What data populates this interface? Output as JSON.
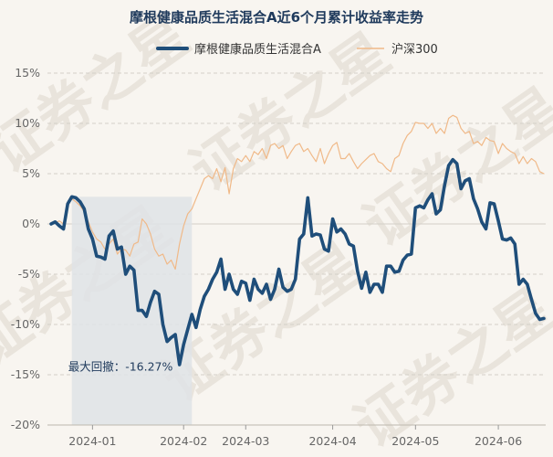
{
  "chart_data": {
    "type": "line",
    "title": "摩根健康品质生活混合A近6个月累计收益率走势",
    "xlabel": "",
    "ylabel": "",
    "x_ticks": [
      "2024-01",
      "2024-02",
      "2024-03",
      "2024-04",
      "2024-05",
      "2024-06"
    ],
    "y_ticks": [
      "15%",
      "10%",
      "5%",
      "0%",
      "-5%",
      "-10%",
      "-15%",
      "-20%"
    ],
    "ylim": [
      -20,
      15
    ],
    "grid": "horizontal dashed",
    "legend_position": "top-center",
    "x": [
      "2023-12-18",
      "2023-12-19",
      "2023-12-20",
      "2023-12-21",
      "2023-12-22",
      "2023-12-25",
      "2023-12-26",
      "2023-12-27",
      "2023-12-28",
      "2023-12-29",
      "2024-01-02",
      "2024-01-03",
      "2024-01-04",
      "2024-01-05",
      "2024-01-08",
      "2024-01-09",
      "2024-01-10",
      "2024-01-11",
      "2024-01-12",
      "2024-01-15",
      "2024-01-16",
      "2024-01-17",
      "2024-01-18",
      "2024-01-19",
      "2024-01-22",
      "2024-01-23",
      "2024-01-24",
      "2024-01-25",
      "2024-01-26",
      "2024-01-29",
      "2024-01-30",
      "2024-01-31",
      "2024-02-01",
      "2024-02-02",
      "2024-02-05",
      "2024-02-06",
      "2024-02-07",
      "2024-02-08",
      "2024-02-19",
      "2024-02-20",
      "2024-02-21",
      "2024-02-22",
      "2024-02-23",
      "2024-02-26",
      "2024-02-27",
      "2024-02-28",
      "2024-02-29",
      "2024-03-01",
      "2024-03-04",
      "2024-03-05",
      "2024-03-06",
      "2024-03-07",
      "2024-03-08",
      "2024-03-11",
      "2024-03-12",
      "2024-03-13",
      "2024-03-14",
      "2024-03-15",
      "2024-03-18",
      "2024-03-19",
      "2024-03-20",
      "2024-03-21",
      "2024-03-22",
      "2024-03-25",
      "2024-03-26",
      "2024-03-27",
      "2024-03-28",
      "2024-03-29",
      "2024-04-01",
      "2024-04-02",
      "2024-04-03",
      "2024-04-08",
      "2024-04-09",
      "2024-04-10",
      "2024-04-11",
      "2024-04-12",
      "2024-04-15",
      "2024-04-16",
      "2024-04-17",
      "2024-04-18",
      "2024-04-19",
      "2024-04-22",
      "2024-04-23",
      "2024-04-24",
      "2024-04-25",
      "2024-04-26",
      "2024-04-29",
      "2024-04-30",
      "2024-05-06",
      "2024-05-07",
      "2024-05-08",
      "2024-05-09",
      "2024-05-10",
      "2024-05-13",
      "2024-05-14",
      "2024-05-15",
      "2024-05-16",
      "2024-05-17",
      "2024-05-20",
      "2024-05-21",
      "2024-05-22",
      "2024-05-23",
      "2024-05-24",
      "2024-05-27",
      "2024-05-28",
      "2024-05-29",
      "2024-05-30",
      "2024-05-31",
      "2024-06-03",
      "2024-06-04",
      "2024-06-05",
      "2024-06-06",
      "2024-06-07",
      "2024-06-11",
      "2024-06-12",
      "2024-06-13",
      "2024-06-14",
      "2024-06-17",
      "2024-06-18",
      "2024-06-19"
    ],
    "series": [
      {
        "name": "摩根健康品质生活混合A",
        "color": "#1f4e7a",
        "values": [
          0.0,
          0.2,
          -0.2,
          -0.5,
          2.0,
          2.7,
          2.6,
          2.2,
          1.5,
          -0.5,
          -1.5,
          -3.2,
          -3.3,
          -3.5,
          -1.2,
          -0.7,
          -2.5,
          -2.3,
          -5.0,
          -4.2,
          -4.6,
          -8.6,
          -8.6,
          -9.2,
          -7.8,
          -6.7,
          -7.0,
          -10.0,
          -11.7,
          -11.3,
          -11.0,
          -14.0,
          -12.0,
          -10.5,
          -9.0,
          -10.3,
          -8.5,
          -7.2,
          -6.5,
          -5.5,
          -4.8,
          -3.5,
          -6.5,
          -5.0,
          -6.5,
          -7.0,
          -5.7,
          -5.9,
          -7.6,
          -5.5,
          -6.5,
          -6.9,
          -6.0,
          -7.5,
          -6.5,
          -4.5,
          -6.3,
          -6.7,
          -6.5,
          -5.5,
          -1.5,
          -1.0,
          2.6,
          -1.2,
          -1.0,
          -1.1,
          -2.5,
          -2.7,
          0.5,
          -0.8,
          -0.5,
          -1.0,
          -2.0,
          -2.2,
          -4.7,
          -6.4,
          -4.8,
          -6.8,
          -6.0,
          -6.0,
          -6.8,
          -4.2,
          -4.2,
          -4.8,
          -4.7,
          -3.6,
          -3.1,
          -3.0,
          1.6,
          1.8,
          1.6,
          2.4,
          3.0,
          1.0,
          1.4,
          3.8,
          5.8,
          6.4,
          6.0,
          3.5,
          4.3,
          4.5,
          2.5,
          1.5,
          0.2,
          -0.5,
          2.1,
          2.0,
          0.3,
          -1.5,
          -1.6,
          -1.4,
          -2.0,
          -6.0,
          -5.5,
          -6.0,
          -7.5,
          -8.9,
          -9.5,
          -9.4
        ]
      },
      {
        "name": "沪深300",
        "color": "#f0b988",
        "values": [
          0.0,
          0.1,
          0.3,
          0.0,
          2.0,
          2.5,
          2.2,
          1.8,
          1.2,
          0.2,
          -0.8,
          -1.5,
          -1.8,
          -2.5,
          -2.0,
          -1.5,
          -3.0,
          -2.5,
          -2.6,
          -3.2,
          -2.0,
          -1.8,
          0.5,
          0.0,
          -1.0,
          -2.5,
          -3.2,
          -3.0,
          -4.0,
          -3.6,
          -4.5,
          -2.0,
          -0.2,
          1.0,
          1.5,
          2.5,
          3.5,
          4.5,
          4.8,
          4.5,
          5.5,
          4.2,
          5.6,
          3.0,
          5.5,
          6.5,
          6.2,
          6.8,
          6.2,
          7.2,
          6.9,
          7.5,
          6.5,
          7.8,
          8.0,
          7.5,
          7.8,
          6.5,
          7.2,
          7.8,
          8.0,
          7.2,
          7.5,
          6.8,
          6.2,
          7.5,
          6.0,
          7.0,
          7.8,
          8.1,
          6.5,
          6.5,
          7.0,
          6.2,
          5.5,
          6.0,
          6.4,
          6.8,
          7.0,
          6.2,
          6.0,
          5.5,
          5.2,
          6.5,
          6.8,
          8.0,
          8.8,
          9.2,
          10.1,
          10.0,
          10.0,
          9.5,
          10.0,
          9.0,
          9.5,
          9.0,
          10.5,
          10.8,
          10.6,
          9.5,
          9.0,
          9.2,
          8.0,
          8.2,
          7.8,
          8.6,
          8.3,
          8.2,
          7.0,
          8.0,
          7.5,
          7.2,
          7.0,
          6.0,
          6.7,
          6.0,
          6.5,
          6.2,
          5.2,
          5.0
        ]
      }
    ],
    "annotation": {
      "label": "最大回撤：-16.27%",
      "start": "2023-12-25",
      "end": "2024-02-05"
    }
  },
  "watermark": "证券之星",
  "colors": {
    "background": "#f8f5f0",
    "drawdown_fill": "#dfe3e6",
    "grid": "#d4d0c8",
    "title": "#1f3a5c"
  }
}
